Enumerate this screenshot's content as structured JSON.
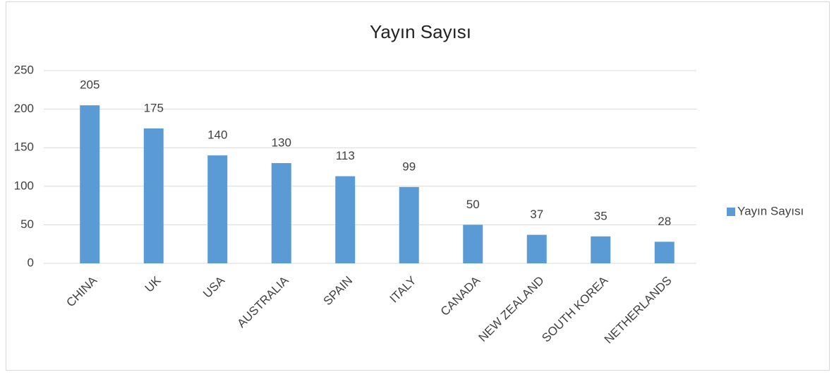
{
  "chart_data": {
    "type": "bar",
    "title": "Yayın Sayısı",
    "categories": [
      "CHINA",
      "UK",
      "USA",
      "AUSTRALIA",
      "SPAIN",
      "ITALY",
      "CANADA",
      "NEW ZEALAND",
      "SOUTH KOREA",
      "NETHERLANDS"
    ],
    "series": [
      {
        "name": "Yayın Sayısı",
        "color": "#5b9bd5",
        "values": [
          205,
          175,
          140,
          130,
          113,
          99,
          50,
          37,
          35,
          28
        ]
      }
    ],
    "ylim": [
      0,
      250
    ],
    "yticks": [
      0,
      50,
      100,
      150,
      200,
      250
    ],
    "grid": true,
    "legend": "right"
  }
}
